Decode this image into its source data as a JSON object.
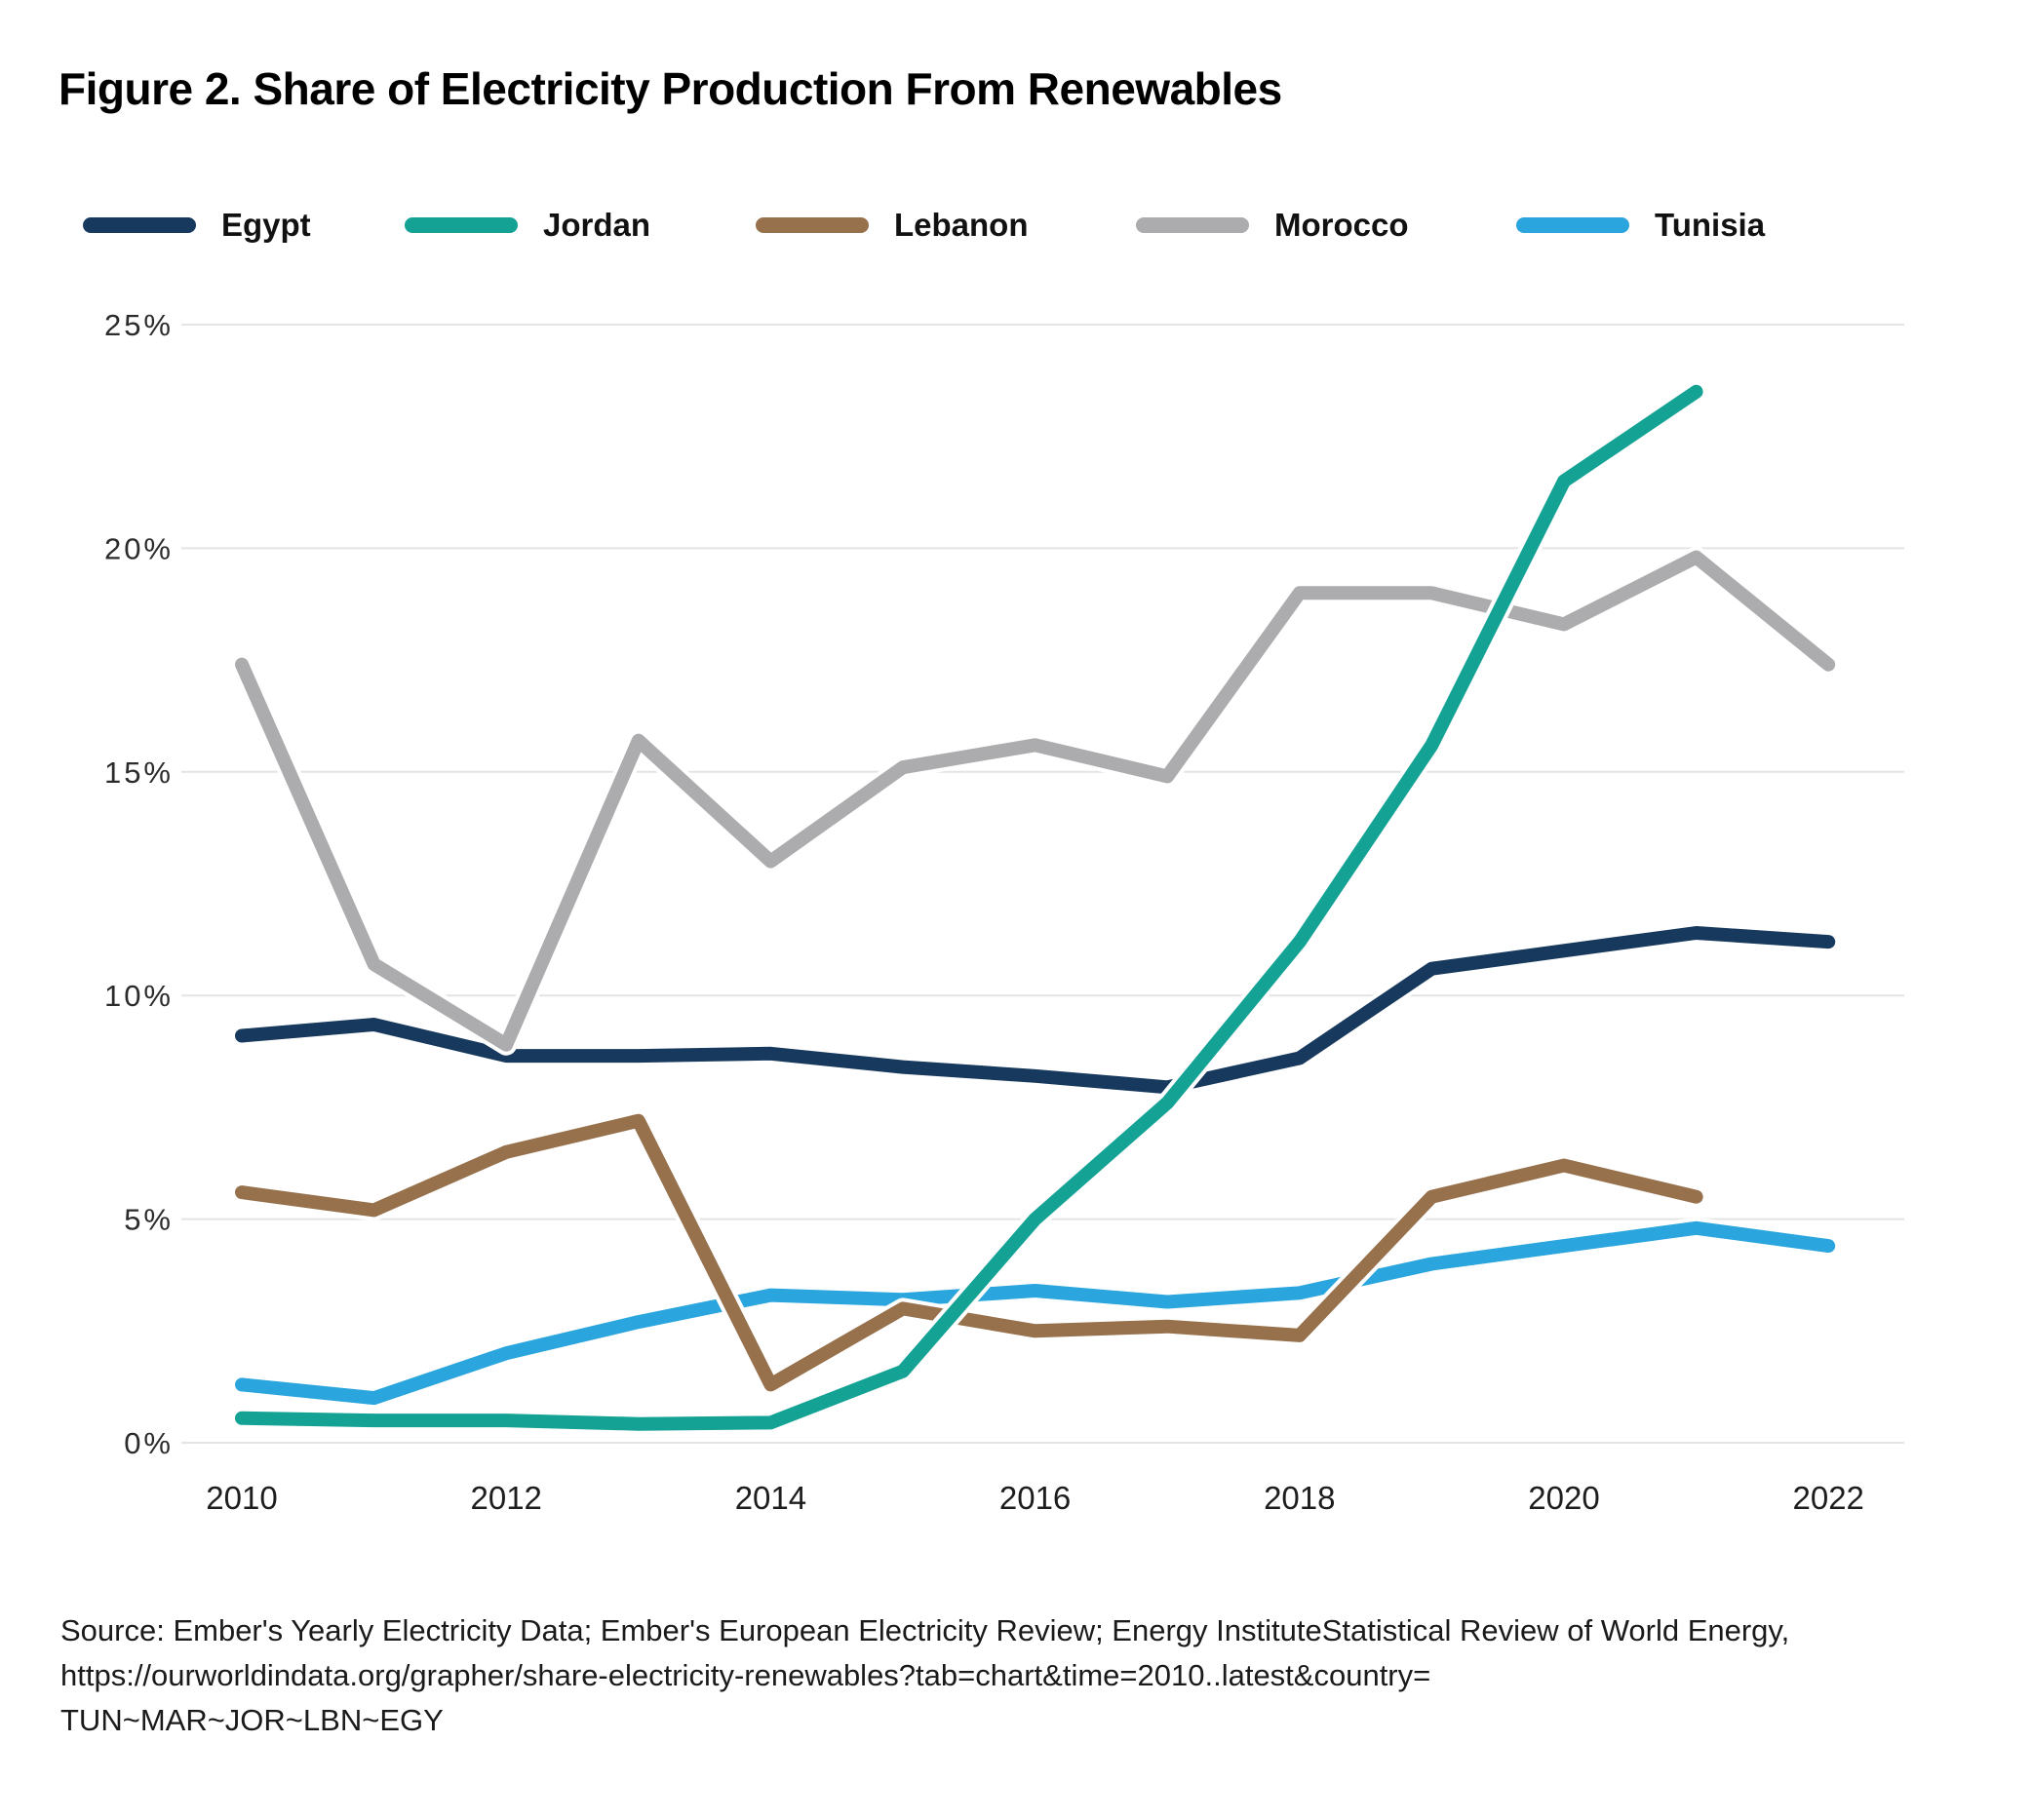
{
  "title": "Figure 2. Share of Electricity Production From Renewables",
  "chart_data": {
    "type": "line",
    "x": [
      2010,
      2011,
      2012,
      2013,
      2014,
      2015,
      2016,
      2017,
      2018,
      2019,
      2020,
      2021,
      2022
    ],
    "x_ticks": [
      2010,
      2012,
      2014,
      2016,
      2018,
      2020,
      2022
    ],
    "x_tick_labels": [
      "2010",
      "2012",
      "2014",
      "2016",
      "2018",
      "2020",
      "2022"
    ],
    "y_ticks": [
      0,
      5,
      10,
      15,
      20,
      25
    ],
    "y_tick_labels": [
      "0%",
      "5%",
      "10%",
      "15%",
      "20%",
      "25%"
    ],
    "ylim": [
      0,
      25
    ],
    "xlabel": "",
    "ylabel": "",
    "grid": "horizontal",
    "legend_position": "top",
    "series": [
      {
        "name": "Egypt",
        "color": "#17395D",
        "values": [
          9.1,
          9.35,
          8.65,
          8.65,
          8.7,
          8.4,
          8.2,
          7.95,
          8.6,
          10.6,
          11.0,
          11.4,
          11.2
        ]
      },
      {
        "name": "Jordan",
        "color": "#13A294",
        "values": [
          0.55,
          0.5,
          0.5,
          0.42,
          0.45,
          1.6,
          5.0,
          7.6,
          11.2,
          15.6,
          21.5,
          23.5,
          null
        ]
      },
      {
        "name": "Lebanon",
        "color": "#97714C",
        "values": [
          5.6,
          5.2,
          6.5,
          7.2,
          1.3,
          3.0,
          2.5,
          2.6,
          2.4,
          5.5,
          6.2,
          5.5,
          null
        ]
      },
      {
        "name": "Morocco",
        "color": "#ACACAE",
        "values": [
          17.4,
          10.7,
          8.9,
          15.7,
          13.0,
          15.1,
          15.6,
          14.9,
          19.0,
          19.0,
          18.3,
          19.8,
          17.4
        ]
      },
      {
        "name": "Tunisia",
        "color": "#2AA5DD",
        "values": [
          1.3,
          1.0,
          2.0,
          2.7,
          3.3,
          3.2,
          3.4,
          3.15,
          3.35,
          4.0,
          4.4,
          4.8,
          4.4
        ]
      }
    ],
    "grid_color": "#E4E4E4"
  },
  "footer": {
    "lines": [
      "Source: Ember's Yearly Electricity Data; Ember's European Electricity Review; Energy InstituteStatistical Review of World Energy,",
      "https://ourworldindata.org/grapher/share-electricity-renewables?tab=chart&time=2010..latest&country=",
      "TUN~MAR~JOR~LBN~EGY"
    ]
  }
}
